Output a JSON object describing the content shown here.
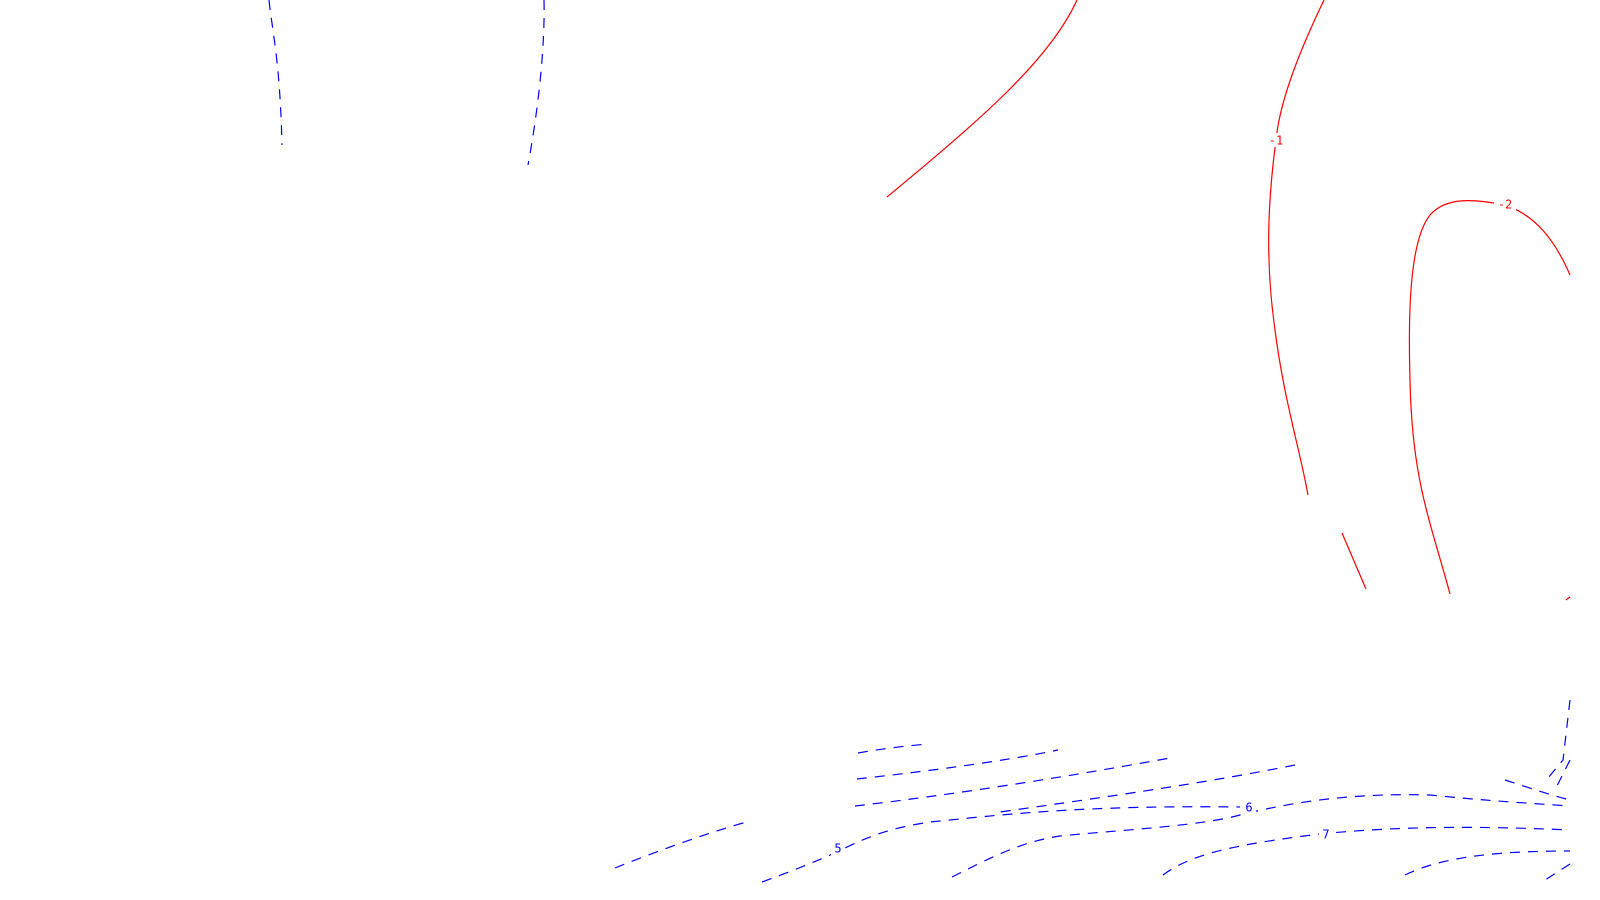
{
  "colors": {
    "negative": "#ff0000",
    "positive": "#0000ff",
    "background": "#ffffff"
  },
  "contour_labels": {
    "neg_1": "-1",
    "neg_2": "-2",
    "pos_5": "5",
    "pos_6": "6",
    "pos_7": "7"
  }
}
